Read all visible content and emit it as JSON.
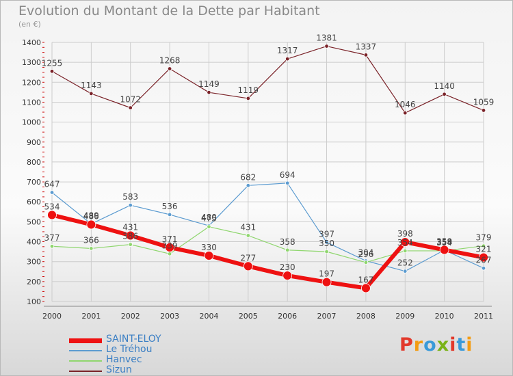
{
  "title": "Evolution du Montant de la Dette par Habitant",
  "unit": "(en €)",
  "logo": "Proxiti",
  "colors": {
    "grid": "#cccccc",
    "axis": "#888888",
    "tick_text": "#333333",
    "label_text": "#444444",
    "tick_mark": "#cc0000",
    "logo": [
      "#e2392b",
      "#f39c12",
      "#3a9ad9",
      "#7ab317",
      "#e2392b",
      "#3a9ad9",
      "#f39c12"
    ]
  },
  "chart_data": {
    "type": "line",
    "x": [
      "2000",
      "2001",
      "2002",
      "2003",
      "2004",
      "2005",
      "2006",
      "2007",
      "2008",
      "2009",
      "2010",
      "2011"
    ],
    "ylim": [
      100,
      1400
    ],
    "yticks": [
      100,
      200,
      300,
      400,
      500,
      600,
      700,
      800,
      900,
      1000,
      1100,
      1200,
      1300,
      1400
    ],
    "grid": true,
    "legend_position": "bottom-left",
    "series": [
      {
        "name": "Sizun",
        "color": "#7a2228",
        "width": 1.2,
        "marker": 2.8,
        "values": [
          1255,
          1143,
          1072,
          1268,
          1149,
          1119,
          1317,
          1381,
          1337,
          1046,
          1140,
          1059
        ]
      },
      {
        "name": "Le Tréhou",
        "color": "#5b9bd0",
        "width": 1.2,
        "marker": 2.8,
        "values": [
          647,
          489,
          583,
          536,
          480,
          682,
          694,
          397,
          304,
          252,
          358,
          267
        ]
      },
      {
        "name": "Hanvec",
        "color": "#8fd66e",
        "width": 1.2,
        "marker": 2.8,
        "values": [
          377,
          366,
          386,
          339,
          475,
          431,
          358,
          350,
          296,
          354,
          354,
          379
        ]
      },
      {
        "name": "SAINT-ELOY",
        "color": "#ee1111",
        "width": 6,
        "marker": 6.5,
        "values": [
          534,
          486,
          431,
          371,
          330,
          277,
          230,
          197,
          167,
          398,
          359,
          321
        ]
      }
    ],
    "legend_order": [
      "SAINT-ELOY",
      "Le Tréhou",
      "Hanvec",
      "Sizun"
    ]
  }
}
